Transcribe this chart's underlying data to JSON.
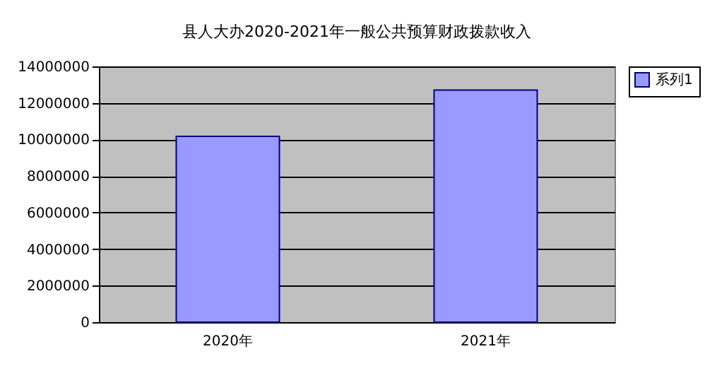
{
  "chart_data": {
    "type": "bar",
    "title": "县人大办2020-2021年一般公共预算财政拨款收入",
    "categories": [
      "2020年",
      "2021年"
    ],
    "series": [
      {
        "name": "系列1",
        "color": "#9999ff",
        "values": [
          10170000,
          12700000
        ]
      }
    ],
    "ylim": [
      0,
      14000000
    ],
    "yticks": [
      0,
      2000000,
      4000000,
      6000000,
      8000000,
      10000000,
      12000000,
      14000000
    ],
    "grid": "y",
    "legend": "right"
  }
}
